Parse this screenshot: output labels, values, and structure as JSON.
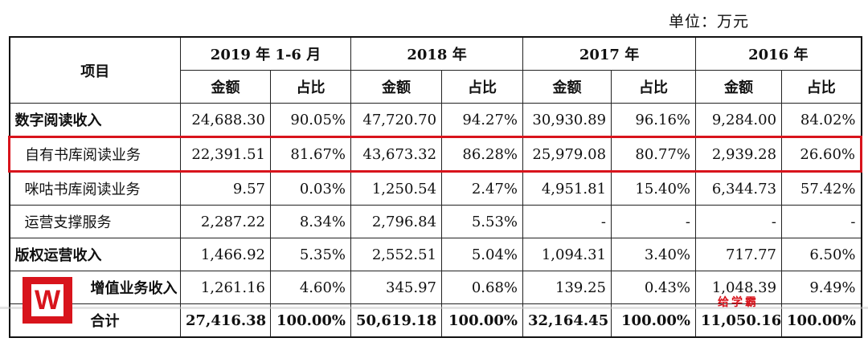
{
  "unit_label": "单位：万元",
  "header": {
    "item": "项目",
    "periods": [
      "2019 年 1-6 月",
      "2018 年",
      "2017 年",
      "2016 年"
    ],
    "amount": "金额",
    "ratio": "占比"
  },
  "rows": [
    {
      "label": "数字阅读收入",
      "values": [
        "24,688.30",
        "90.05%",
        "47,720.70",
        "94.27%",
        "30,930.89",
        "96.16%",
        "9,284.00",
        "84.02%"
      ]
    },
    {
      "label": "自有书库阅读业务",
      "values": [
        "22,391.51",
        "81.67%",
        "43,673.32",
        "86.28%",
        "25,979.08",
        "80.77%",
        "2,939.28",
        "26.60%"
      ]
    },
    {
      "label": "咪咕书库阅读业务",
      "values": [
        "9.57",
        "0.03%",
        "1,250.54",
        "2.47%",
        "4,951.81",
        "15.40%",
        "6,344.73",
        "57.42%"
      ]
    },
    {
      "label": "运营支撑服务",
      "values": [
        "2,287.22",
        "8.34%",
        "2,796.84",
        "5.53%",
        "-",
        "-",
        "-",
        "-"
      ]
    },
    {
      "label": "版权运营收入",
      "values": [
        "1,466.92",
        "5.35%",
        "2,552.51",
        "5.04%",
        "1,094.31",
        "3.40%",
        "717.77",
        "6.50%"
      ]
    },
    {
      "label": "增值业务收入",
      "values": [
        "1,261.16",
        "4.60%",
        "345.97",
        "0.68%",
        "139.25",
        "0.43%",
        "1,048.39",
        "9.49%"
      ]
    },
    {
      "label": "合计",
      "values": [
        "27,416.38",
        "100.00%",
        "50,619.18",
        "100.00%",
        "32,164.45",
        "100.00%",
        "11,050.16",
        "100.00%"
      ]
    }
  ],
  "watermark": {
    "logo_letter": "W",
    "brand": "给学霸"
  },
  "colors": {
    "highlight": "#d8141c"
  }
}
